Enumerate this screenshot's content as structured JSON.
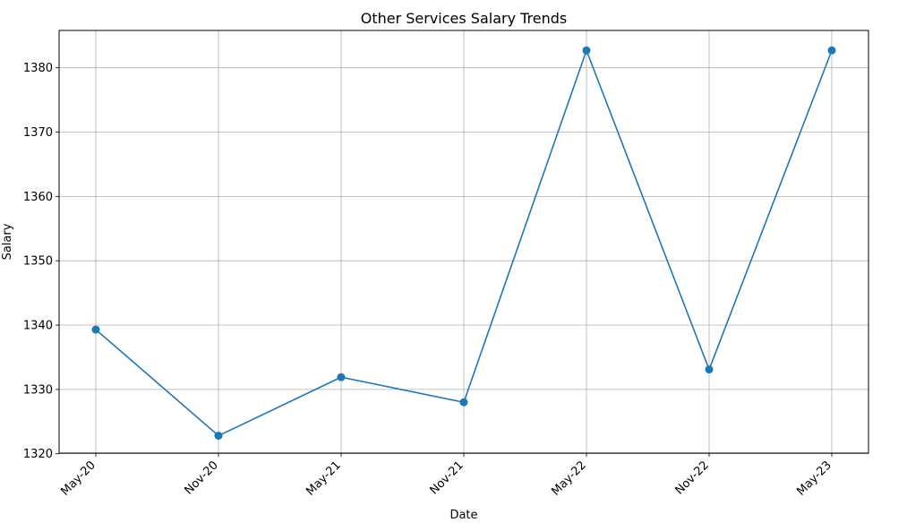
{
  "chart_data": {
    "type": "line",
    "title": "Other Services Salary Trends",
    "xlabel": "Date",
    "ylabel": "Salary",
    "x": [
      "May-20",
      "Nov-20",
      "May-21",
      "Nov-21",
      "May-22",
      "Nov-22",
      "May-23"
    ],
    "series": [
      {
        "values": [
          1339.3,
          1322.8,
          1331.9,
          1328.0,
          1382.7,
          1333.1,
          1382.7
        ],
        "color": "#1f77b4",
        "marker": "circle"
      }
    ],
    "ylim": [
      1320.1,
      1385.8
    ],
    "yticks": [
      1320,
      1330,
      1340,
      1350,
      1360,
      1370,
      1380
    ],
    "grid": true,
    "legend": "none"
  }
}
